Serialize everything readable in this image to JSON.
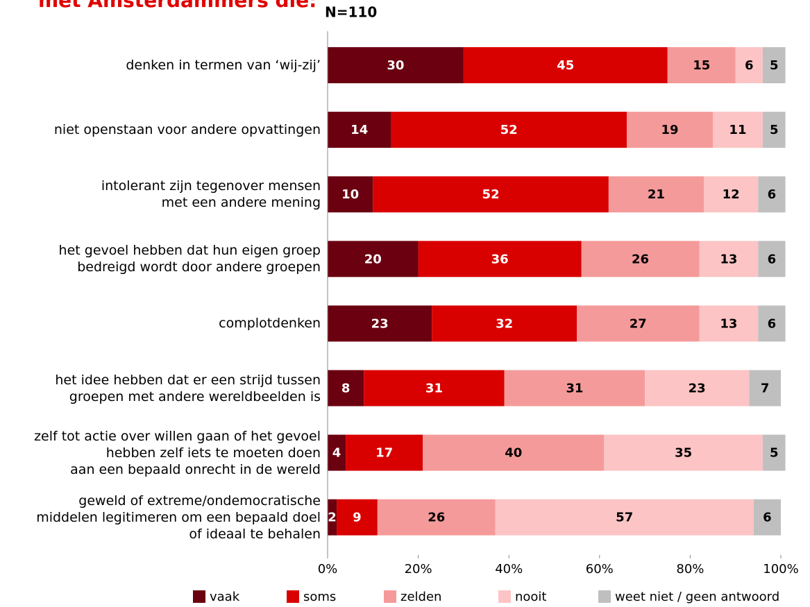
{
  "chart_data": {
    "type": "stacked_bar_horizontal",
    "title": "met Amsterdammers die:",
    "subtitle": "N=110",
    "categories": [
      "denken in termen van ‘wij-zij’",
      "niet openstaan voor andere opvattingen",
      "intolerant zijn tegenover mensen\nmet een andere mening",
      "het gevoel hebben dat hun eigen groep\nbedreigd wordt door andere groepen",
      "complotdenken",
      "het idee hebben dat er een strijd tussen\ngroepen met andere wereldbeelden is",
      "zelf tot actie over willen gaan of het gevoel\nhebben zelf iets te moeten doen\naan een bepaald onrecht in de wereld",
      "geweld of extreme/ondemocratische\nmiddelen legitimeren om een bepaald doel\nof ideaal te behalen"
    ],
    "series": [
      {
        "name": "vaak",
        "color": "#6b0010",
        "label_color": "#ffffff",
        "values": [
          30,
          14,
          10,
          20,
          23,
          8,
          4,
          2
        ]
      },
      {
        "name": "soms",
        "color": "#d90000",
        "label_color": "#ffffff",
        "values": [
          45,
          52,
          52,
          36,
          32,
          31,
          17,
          9
        ]
      },
      {
        "name": "zelden",
        "color": "#f59a9a",
        "label_color": "#000000",
        "values": [
          15,
          19,
          21,
          26,
          27,
          31,
          40,
          26
        ]
      },
      {
        "name": "nooit",
        "color": "#fcc4c4",
        "label_color": "#000000",
        "values": [
          6,
          11,
          12,
          13,
          13,
          23,
          35,
          57
        ]
      },
      {
        "name": "weet niet / geen antwoord",
        "color": "#bfbfbf",
        "label_color": "#000000",
        "values": [
          5,
          5,
          6,
          6,
          6,
          7,
          5,
          6
        ]
      }
    ],
    "xlim": [
      0,
      100
    ],
    "xticks": [
      {
        "value": 0,
        "label": "0%"
      },
      {
        "value": 20,
        "label": "20%"
      },
      {
        "value": 40,
        "label": "40%"
      },
      {
        "value": 60,
        "label": "60%"
      },
      {
        "value": 80,
        "label": "80%"
      },
      {
        "value": 100,
        "label": "100%"
      }
    ],
    "legend": "bottom"
  }
}
